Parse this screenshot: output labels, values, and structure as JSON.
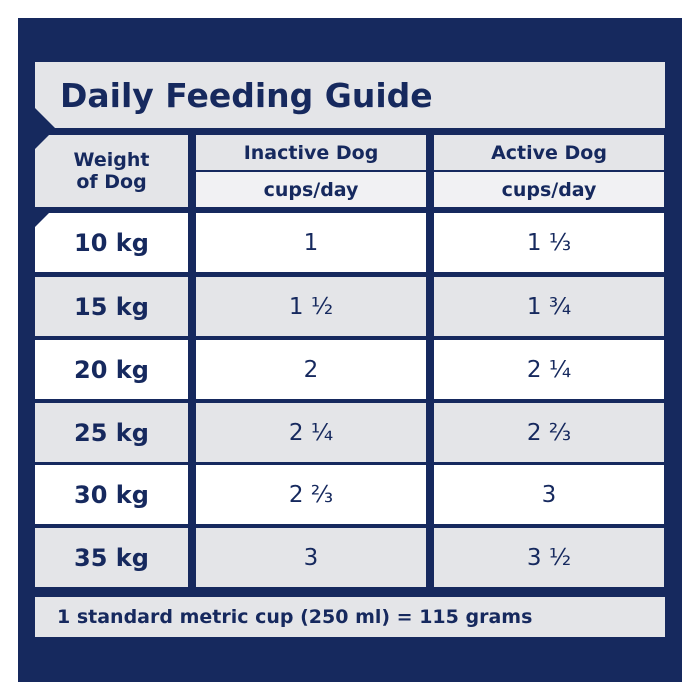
{
  "title": "Daily Feeding Guide",
  "table": {
    "header": [
      "Weight of Dog",
      "Inactive Dog",
      "Active Dog"
    ],
    "units": [
      "cups/day",
      "cups/day"
    ],
    "rows": [
      [
        "10 kg",
        "1",
        "1 ⅓"
      ],
      [
        "15 kg",
        "1 ½",
        "1 ¾"
      ],
      [
        "20 kg",
        "2",
        "2 ¼"
      ],
      [
        "25 kg",
        "2 ¼",
        "2 ⅔"
      ],
      [
        "30 kg",
        "2 ⅔",
        "3"
      ],
      [
        "35 kg",
        "3",
        "3 ½"
      ]
    ]
  },
  "footnote": "1 standard metric cup (250 ml) = 115 grams"
}
